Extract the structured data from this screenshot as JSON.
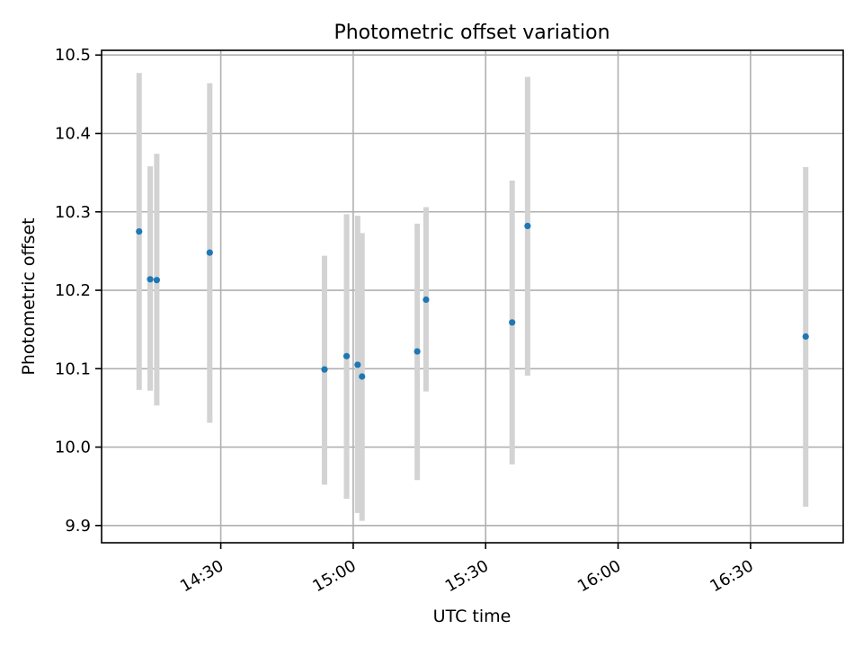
{
  "chart_data": {
    "type": "scatter",
    "title": "Photometric offset variation",
    "xlabel": "UTC time",
    "ylabel": "Photometric offset",
    "x_scale": "time",
    "x_range": [
      "14:03",
      "16:51"
    ],
    "ylim": [
      9.878,
      10.506
    ],
    "x_ticks": [
      "14:30",
      "15:00",
      "15:30",
      "16:00",
      "16:30"
    ],
    "y_ticks": [
      "9.9",
      "10.0",
      "10.1",
      "10.2",
      "10.3",
      "10.4",
      "10.5"
    ],
    "grid": true,
    "colors": {
      "point": "#1f77b4",
      "error_bar": "#d3d3d3"
    },
    "points": [
      {
        "time": "14:11:30",
        "y": 10.275,
        "err_low": 10.073,
        "err_high": 10.477
      },
      {
        "time": "14:14:00",
        "y": 10.214,
        "err_low": 10.072,
        "err_high": 10.358
      },
      {
        "time": "14:15:30",
        "y": 10.213,
        "err_low": 10.053,
        "err_high": 10.374
      },
      {
        "time": "14:27:30",
        "y": 10.248,
        "err_low": 10.031,
        "err_high": 10.464
      },
      {
        "time": "14:53:30",
        "y": 10.099,
        "err_low": 9.952,
        "err_high": 10.244
      },
      {
        "time": "14:58:30",
        "y": 10.116,
        "err_low": 9.934,
        "err_high": 10.297
      },
      {
        "time": "15:01:00",
        "y": 10.105,
        "err_low": 9.916,
        "err_high": 10.295
      },
      {
        "time": "15:02:00",
        "y": 10.09,
        "err_low": 9.906,
        "err_high": 10.273
      },
      {
        "time": "15:14:30",
        "y": 10.122,
        "err_low": 9.958,
        "err_high": 10.285
      },
      {
        "time": "15:16:30",
        "y": 10.188,
        "err_low": 10.071,
        "err_high": 10.306
      },
      {
        "time": "15:36:00",
        "y": 10.159,
        "err_low": 9.978,
        "err_high": 10.34
      },
      {
        "time": "15:39:30",
        "y": 10.282,
        "err_low": 10.091,
        "err_high": 10.472
      },
      {
        "time": "16:42:30",
        "y": 10.141,
        "err_low": 9.924,
        "err_high": 10.357
      }
    ]
  }
}
